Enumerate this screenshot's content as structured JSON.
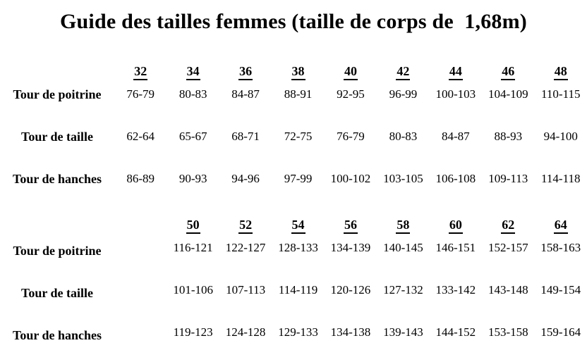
{
  "title": "Guide des tailles femmes (taille de corps de  1,68m)",
  "table": {
    "block1": {
      "sizes": [
        "32",
        "34",
        "36",
        "38",
        "40",
        "42",
        "44",
        "46",
        "48"
      ],
      "rows": [
        {
          "label": "Tour de poitrine",
          "values": [
            "76-79",
            "80-83",
            "84-87",
            "88-91",
            "92-95",
            "96-99",
            "100-103",
            "104-109",
            "110-115"
          ]
        },
        {
          "label": "Tour de taille",
          "values": [
            "62-64",
            "65-67",
            "68-71",
            "72-75",
            "76-79",
            "80-83",
            "84-87",
            "88-93",
            "94-100"
          ]
        },
        {
          "label": "Tour de hanches",
          "values": [
            "86-89",
            "90-93",
            "94-96",
            "97-99",
            "100-102",
            "103-105",
            "106-108",
            "109-113",
            "114-118"
          ]
        }
      ]
    },
    "block2": {
      "sizes": [
        "50",
        "52",
        "54",
        "56",
        "58",
        "60",
        "62",
        "64"
      ],
      "rows": [
        {
          "label": "Tour de poitrine",
          "values": [
            "116-121",
            "122-127",
            "128-133",
            "134-139",
            "140-145",
            "146-151",
            "152-157",
            "158-163"
          ]
        },
        {
          "label": "Tour de taille",
          "values": [
            "101-106",
            "107-113",
            "114-119",
            "120-126",
            "127-132",
            "133-142",
            "143-148",
            "149-154"
          ]
        },
        {
          "label": "Tour de hanches",
          "values": [
            "119-123",
            "124-128",
            "129-133",
            "134-138",
            "139-143",
            "144-152",
            "153-158",
            "159-164"
          ]
        }
      ]
    }
  }
}
